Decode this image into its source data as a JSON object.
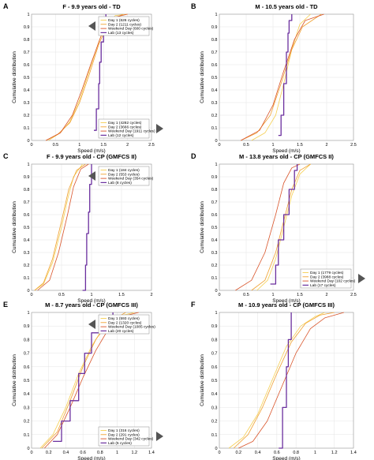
{
  "legend_colors": [
    "#f5cf52",
    "#f0a030",
    "#d9542a",
    "#6a2f9e"
  ],
  "callout_color": "#555555",
  "chart_data": [
    {
      "type": "line",
      "letter": "A",
      "title": "F - 9.9 years old - TD",
      "xlabel": "Speed (m/s)",
      "ylabel": "Cumulative distribution",
      "xlim": [
        0,
        2.5
      ],
      "ylim": [
        0,
        1
      ],
      "xticks": [
        "0",
        "0.5",
        "1",
        "1.5",
        "2",
        "2.5"
      ],
      "yticks": [
        "0",
        "0.1",
        "0.2",
        "0.3",
        "0.4",
        "0.5",
        "0.6",
        "0.7",
        "0.8",
        "0.9",
        "1"
      ],
      "grid": true,
      "legends": [
        {
          "placement": "upper-right",
          "callout": "left",
          "entries": [
            "Day 1 (626 cycles)",
            "Day 2 (1211 cycles)",
            "Weekend Day (600 cycles)",
            "Lab (13 cycles)"
          ]
        },
        {
          "placement": "lower-right",
          "callout": "right",
          "entries": [
            "Day 1 (4282 cycles)",
            "Day 2 (3666 cycles)",
            "Weekend Day (1911 cycles)",
            "Lab (12 cycles)"
          ]
        }
      ],
      "series": [
        {
          "values": [
            [
              0.35,
              0
            ],
            [
              0.6,
              0.06
            ],
            [
              0.8,
              0.15
            ],
            [
              1.0,
              0.32
            ],
            [
              1.2,
              0.55
            ],
            [
              1.4,
              0.78
            ],
            [
              1.55,
              0.92
            ],
            [
              1.75,
              0.99
            ],
            [
              2.0,
              1
            ]
          ]
        },
        {
          "values": [
            [
              0.3,
              0
            ],
            [
              0.55,
              0.05
            ],
            [
              0.8,
              0.14
            ],
            [
              1.0,
              0.3
            ],
            [
              1.2,
              0.52
            ],
            [
              1.4,
              0.76
            ],
            [
              1.6,
              0.93
            ],
            [
              1.9,
              1
            ]
          ]
        },
        {
          "values": [
            [
              0.3,
              0
            ],
            [
              0.6,
              0.06
            ],
            [
              0.85,
              0.2
            ],
            [
              1.05,
              0.4
            ],
            [
              1.25,
              0.62
            ],
            [
              1.45,
              0.83
            ],
            [
              1.65,
              0.97
            ],
            [
              2.0,
              1
            ]
          ]
        },
        {
          "values": [
            [
              1.3,
              0.08
            ],
            [
              1.35,
              0.25
            ],
            [
              1.4,
              0.45
            ],
            [
              1.42,
              0.62
            ],
            [
              1.45,
              0.78
            ],
            [
              1.5,
              0.92
            ],
            [
              1.55,
              1
            ]
          ],
          "step": true
        }
      ]
    },
    {
      "type": "line",
      "letter": "B",
      "title": "M - 10.5 years old - TD",
      "xlabel": "Speed (m/s)",
      "ylabel": "Cumulative distribution",
      "xlim": [
        0,
        2.5
      ],
      "ylim": [
        0,
        1
      ],
      "xticks": [
        "0",
        "0.5",
        "1",
        "1.5",
        "2",
        "2.5"
      ],
      "yticks": [
        "0",
        "0.1",
        "0.2",
        "0.3",
        "0.4",
        "0.5",
        "0.6",
        "0.7",
        "0.8",
        "0.9",
        "1"
      ],
      "grid": true,
      "legends": [],
      "series": [
        {
          "values": [
            [
              0.6,
              0
            ],
            [
              0.85,
              0.06
            ],
            [
              1.05,
              0.2
            ],
            [
              1.2,
              0.45
            ],
            [
              1.35,
              0.72
            ],
            [
              1.5,
              0.92
            ],
            [
              1.7,
              1
            ]
          ]
        },
        {
          "values": [
            [
              0.4,
              0
            ],
            [
              0.7,
              0.06
            ],
            [
              0.95,
              0.2
            ],
            [
              1.15,
              0.45
            ],
            [
              1.35,
              0.72
            ],
            [
              1.55,
              0.9
            ],
            [
              1.9,
              1
            ]
          ]
        },
        {
          "values": [
            [
              0.4,
              0
            ],
            [
              0.75,
              0.08
            ],
            [
              1.0,
              0.28
            ],
            [
              1.2,
              0.55
            ],
            [
              1.4,
              0.8
            ],
            [
              1.6,
              0.95
            ],
            [
              1.95,
              1
            ]
          ]
        },
        {
          "values": [
            [
              1.1,
              0.04
            ],
            [
              1.15,
              0.2
            ],
            [
              1.2,
              0.45
            ],
            [
              1.25,
              0.7
            ],
            [
              1.28,
              0.85
            ],
            [
              1.3,
              0.95
            ],
            [
              1.35,
              1
            ]
          ],
          "step": true
        }
      ]
    },
    {
      "type": "line",
      "letter": "C",
      "title": "F - 9.9 years old - CP (GMFCS II)",
      "xlabel": "Speed (m/s)",
      "ylabel": "Cumulative distribution",
      "xlim": [
        0,
        2
      ],
      "ylim": [
        0,
        1
      ],
      "xticks": [
        "0",
        "0.5",
        "1",
        "1.5",
        "2"
      ],
      "yticks": [
        "0",
        "0.1",
        "0.2",
        "0.3",
        "0.4",
        "0.5",
        "0.6",
        "0.7",
        "0.8",
        "0.9",
        "1"
      ],
      "grid": true,
      "legends": [
        {
          "placement": "upper-right",
          "callout": "left",
          "entries": [
            "Day 1 (184 cycles)",
            "Day 2 (553 cycles)",
            "Weekend Day (354 cycles)",
            "Lab (8 cycles)"
          ]
        }
      ],
      "series": [
        {
          "values": [
            [
              0.05,
              0
            ],
            [
              0.2,
              0.05
            ],
            [
              0.35,
              0.22
            ],
            [
              0.5,
              0.5
            ],
            [
              0.6,
              0.72
            ],
            [
              0.7,
              0.9
            ],
            [
              0.85,
              1
            ]
          ]
        },
        {
          "values": [
            [
              0.05,
              0
            ],
            [
              0.2,
              0.06
            ],
            [
              0.35,
              0.25
            ],
            [
              0.5,
              0.55
            ],
            [
              0.62,
              0.8
            ],
            [
              0.75,
              0.95
            ],
            [
              0.9,
              1
            ]
          ]
        },
        {
          "values": [
            [
              0.1,
              0
            ],
            [
              0.3,
              0.08
            ],
            [
              0.45,
              0.3
            ],
            [
              0.6,
              0.6
            ],
            [
              0.7,
              0.82
            ],
            [
              0.82,
              0.96
            ],
            [
              0.95,
              1
            ]
          ]
        },
        {
          "values": [
            [
              0.85,
              0
            ],
            [
              0.9,
              0.2
            ],
            [
              0.92,
              0.45
            ],
            [
              0.95,
              0.62
            ],
            [
              0.97,
              0.84
            ],
            [
              1.0,
              1
            ]
          ],
          "step": true
        }
      ]
    },
    {
      "type": "line",
      "letter": "D",
      "title": "M - 13.8 years old - CP (GMFCS II)",
      "xlabel": "Speed (m/s)",
      "ylabel": "Cumulative distribution",
      "xlim": [
        0,
        2.5
      ],
      "ylim": [
        0,
        1
      ],
      "xticks": [
        "0",
        "0.5",
        "1",
        "1.5",
        "2",
        "2.5"
      ],
      "yticks": [
        "0",
        "0.1",
        "0.2",
        "0.3",
        "0.4",
        "0.5",
        "0.6",
        "0.7",
        "0.8",
        "0.9",
        "1"
      ],
      "grid": true,
      "legends": [
        {
          "placement": "lower-right",
          "callout": "right",
          "entries": [
            "Day 1 (1779 cycles)",
            "Day 2 (3988 cycles)",
            "Weekend Day (102 cycles)",
            "Lab (17 cycles)"
          ]
        }
      ],
      "series": [
        {
          "values": [
            [
              0.7,
              0
            ],
            [
              0.9,
              0.08
            ],
            [
              1.05,
              0.25
            ],
            [
              1.2,
              0.5
            ],
            [
              1.35,
              0.75
            ],
            [
              1.5,
              0.92
            ],
            [
              1.7,
              1
            ]
          ]
        },
        {
          "values": [
            [
              0.6,
              0
            ],
            [
              0.85,
              0.08
            ],
            [
              1.05,
              0.3
            ],
            [
              1.2,
              0.55
            ],
            [
              1.35,
              0.8
            ],
            [
              1.5,
              0.95
            ],
            [
              1.7,
              1
            ]
          ]
        },
        {
          "values": [
            [
              0.3,
              0
            ],
            [
              0.6,
              0.08
            ],
            [
              0.85,
              0.3
            ],
            [
              1.05,
              0.6
            ],
            [
              1.2,
              0.85
            ],
            [
              1.35,
              0.97
            ],
            [
              1.5,
              1
            ]
          ]
        },
        {
          "values": [
            [
              0.95,
              0.05
            ],
            [
              1.05,
              0.2
            ],
            [
              1.1,
              0.4
            ],
            [
              1.2,
              0.6
            ],
            [
              1.3,
              0.8
            ],
            [
              1.4,
              0.95
            ],
            [
              1.45,
              1
            ]
          ],
          "step": true
        }
      ]
    },
    {
      "type": "line",
      "letter": "E",
      "title": "M - 8.7 years old - CP (GMFCS III)",
      "xlabel": "Speed (m/s)",
      "ylabel": "Cumulative distribution",
      "xlim": [
        0,
        1.4
      ],
      "ylim": [
        0,
        1
      ],
      "xticks": [
        "0",
        "0.2",
        "0.4",
        "0.6",
        "0.8",
        "1",
        "1.2",
        "1.4"
      ],
      "yticks": [
        "0",
        "0.1",
        "0.2",
        "0.3",
        "0.4",
        "0.5",
        "0.6",
        "0.7",
        "0.8",
        "0.9",
        "1"
      ],
      "grid": true,
      "legends": [
        {
          "placement": "upper-right",
          "callout": "left",
          "entries": [
            "Day 1 (593 cycles)",
            "Day 2 (1320 cycles)",
            "Weekend Day (1085 cycles)",
            "Lab (20 cycles)"
          ]
        },
        {
          "placement": "lower-right",
          "callout": "right",
          "entries": [
            "Day 1 (316 cycles)",
            "Day 2 (291 cycles)",
            "Weekend Day (342 cycles)",
            "Lab (5 cycles)"
          ]
        }
      ],
      "series": [
        {
          "values": [
            [
              0.1,
              0
            ],
            [
              0.25,
              0.1
            ],
            [
              0.4,
              0.3
            ],
            [
              0.55,
              0.55
            ],
            [
              0.7,
              0.75
            ],
            [
              0.85,
              0.9
            ],
            [
              1.0,
              0.97
            ],
            [
              1.2,
              1
            ]
          ]
        },
        {
          "values": [
            [
              0.12,
              0
            ],
            [
              0.3,
              0.12
            ],
            [
              0.45,
              0.35
            ],
            [
              0.6,
              0.6
            ],
            [
              0.75,
              0.8
            ],
            [
              0.9,
              0.93
            ],
            [
              1.1,
              1
            ]
          ]
        },
        {
          "values": [
            [
              0.15,
              0
            ],
            [
              0.3,
              0.1
            ],
            [
              0.45,
              0.3
            ],
            [
              0.6,
              0.52
            ],
            [
              0.75,
              0.72
            ],
            [
              0.9,
              0.88
            ],
            [
              1.05,
              0.97
            ],
            [
              1.25,
              1
            ]
          ]
        },
        {
          "values": [
            [
              0.25,
              0.05
            ],
            [
              0.35,
              0.2
            ],
            [
              0.45,
              0.35
            ],
            [
              0.55,
              0.55
            ],
            [
              0.62,
              0.7
            ],
            [
              0.7,
              0.85
            ],
            [
              0.8,
              0.95
            ],
            [
              0.95,
              1
            ]
          ],
          "step": true
        }
      ]
    },
    {
      "type": "line",
      "letter": "F",
      "title": "M - 10.9 years old - CP (GMFCS III)",
      "xlabel": "Speed (m/s)",
      "ylabel": "Cumulative distribution",
      "xlim": [
        0,
        1.4
      ],
      "ylim": [
        0,
        1
      ],
      "xticks": [
        "0",
        "0.2",
        "0.4",
        "0.6",
        "0.8",
        "1",
        "1.2",
        "1.4"
      ],
      "yticks": [
        "0",
        "0.1",
        "0.2",
        "0.3",
        "0.4",
        "0.5",
        "0.6",
        "0.7",
        "0.8",
        "0.9",
        "1"
      ],
      "grid": true,
      "legends": [],
      "series": [
        {
          "values": [
            [
              0.1,
              0
            ],
            [
              0.25,
              0.08
            ],
            [
              0.4,
              0.25
            ],
            [
              0.55,
              0.5
            ],
            [
              0.7,
              0.75
            ],
            [
              0.85,
              0.9
            ],
            [
              1.0,
              0.97
            ],
            [
              1.1,
              1
            ]
          ]
        },
        {
          "values": [
            [
              0.15,
              0
            ],
            [
              0.3,
              0.1
            ],
            [
              0.45,
              0.3
            ],
            [
              0.6,
              0.55
            ],
            [
              0.75,
              0.78
            ],
            [
              0.9,
              0.92
            ],
            [
              1.05,
              0.98
            ],
            [
              1.2,
              1
            ]
          ]
        },
        {
          "values": [
            [
              0.2,
              0
            ],
            [
              0.35,
              0.05
            ],
            [
              0.5,
              0.2
            ],
            [
              0.65,
              0.45
            ],
            [
              0.8,
              0.7
            ],
            [
              0.95,
              0.88
            ],
            [
              1.1,
              0.96
            ],
            [
              1.3,
              1
            ]
          ]
        },
        {
          "values": [
            [
              0.62,
              0
            ],
            [
              0.66,
              0.3
            ],
            [
              0.7,
              0.6
            ],
            [
              0.72,
              0.8
            ],
            [
              0.75,
              1
            ]
          ],
          "step": true
        }
      ]
    }
  ]
}
